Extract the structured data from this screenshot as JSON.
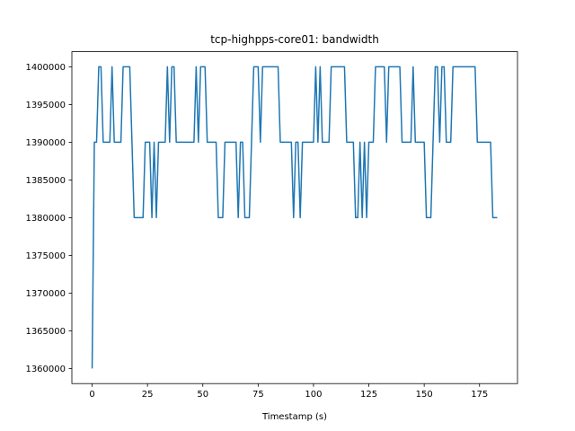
{
  "chart_data": {
    "type": "line",
    "title": "tcp-highpps-core01: bandwidth",
    "xlabel": "Timestamp (s)",
    "color": "#1f77b4",
    "xlim": [
      -9.15,
      192.15
    ],
    "ylim": [
      1358000,
      1402000
    ],
    "xticks": [
      0,
      25,
      50,
      75,
      100,
      125,
      150,
      175
    ],
    "yticks": [
      1360000,
      1365000,
      1370000,
      1375000,
      1380000,
      1385000,
      1390000,
      1395000,
      1400000
    ],
    "x": [
      0,
      1,
      2,
      3,
      4,
      5,
      6,
      7,
      8,
      9,
      10,
      11,
      12,
      13,
      14,
      15,
      16,
      17,
      18,
      19,
      20,
      21,
      22,
      23,
      24,
      25,
      26,
      27,
      28,
      29,
      30,
      31,
      32,
      33,
      34,
      35,
      36,
      37,
      38,
      39,
      40,
      41,
      42,
      43,
      44,
      45,
      46,
      47,
      48,
      49,
      50,
      51,
      52,
      53,
      54,
      55,
      56,
      57,
      58,
      59,
      60,
      61,
      62,
      63,
      64,
      65,
      66,
      67,
      68,
      69,
      70,
      71,
      72,
      73,
      74,
      75,
      76,
      77,
      78,
      79,
      80,
      81,
      82,
      83,
      84,
      85,
      86,
      87,
      88,
      89,
      90,
      91,
      92,
      93,
      94,
      95,
      96,
      97,
      98,
      99,
      100,
      101,
      102,
      103,
      104,
      105,
      106,
      107,
      108,
      109,
      110,
      111,
      112,
      113,
      114,
      115,
      116,
      117,
      118,
      119,
      120,
      121,
      122,
      123,
      124,
      125,
      126,
      127,
      128,
      129,
      130,
      131,
      132,
      133,
      134,
      135,
      136,
      137,
      138,
      139,
      140,
      141,
      142,
      143,
      144,
      145,
      146,
      147,
      148,
      149,
      150,
      151,
      152,
      153,
      154,
      155,
      156,
      157,
      158,
      159,
      160,
      161,
      162,
      163,
      164,
      165,
      166,
      167,
      168,
      169,
      170,
      171,
      172,
      173,
      174,
      175,
      176,
      177,
      178,
      179,
      180,
      181,
      182,
      183
    ],
    "values": [
      1360000,
      1390000,
      1390000,
      1400000,
      1400000,
      1390000,
      1390000,
      1390000,
      1390000,
      1400000,
      1390000,
      1390000,
      1390000,
      1390000,
      1400000,
      1400000,
      1400000,
      1400000,
      1390000,
      1380000,
      1380000,
      1380000,
      1380000,
      1380000,
      1390000,
      1390000,
      1390000,
      1380000,
      1390000,
      1380000,
      1390000,
      1390000,
      1390000,
      1390000,
      1400000,
      1390000,
      1400000,
      1400000,
      1390000,
      1390000,
      1390000,
      1390000,
      1390000,
      1390000,
      1390000,
      1390000,
      1390000,
      1400000,
      1390000,
      1400000,
      1400000,
      1400000,
      1390000,
      1390000,
      1390000,
      1390000,
      1390000,
      1380000,
      1380000,
      1380000,
      1390000,
      1390000,
      1390000,
      1390000,
      1390000,
      1390000,
      1380000,
      1390000,
      1390000,
      1380000,
      1380000,
      1380000,
      1390000,
      1400000,
      1400000,
      1400000,
      1390000,
      1400000,
      1400000,
      1400000,
      1400000,
      1400000,
      1400000,
      1400000,
      1400000,
      1390000,
      1390000,
      1390000,
      1390000,
      1390000,
      1390000,
      1380000,
      1390000,
      1390000,
      1380000,
      1390000,
      1390000,
      1390000,
      1390000,
      1390000,
      1390000,
      1400000,
      1390000,
      1400000,
      1390000,
      1390000,
      1390000,
      1390000,
      1400000,
      1400000,
      1400000,
      1400000,
      1400000,
      1400000,
      1400000,
      1390000,
      1390000,
      1390000,
      1390000,
      1380000,
      1380000,
      1390000,
      1380000,
      1390000,
      1380000,
      1390000,
      1390000,
      1390000,
      1400000,
      1400000,
      1400000,
      1400000,
      1400000,
      1390000,
      1400000,
      1400000,
      1400000,
      1400000,
      1400000,
      1400000,
      1390000,
      1390000,
      1390000,
      1390000,
      1390000,
      1400000,
      1390000,
      1390000,
      1390000,
      1390000,
      1390000,
      1380000,
      1380000,
      1380000,
      1390000,
      1400000,
      1400000,
      1390000,
      1400000,
      1400000,
      1390000,
      1390000,
      1390000,
      1400000,
      1400000,
      1400000,
      1400000,
      1400000,
      1400000,
      1400000,
      1400000,
      1400000,
      1400000,
      1400000,
      1390000,
      1390000,
      1390000,
      1390000,
      1390000,
      1390000,
      1390000,
      1380000,
      1380000,
      1380000
    ]
  }
}
